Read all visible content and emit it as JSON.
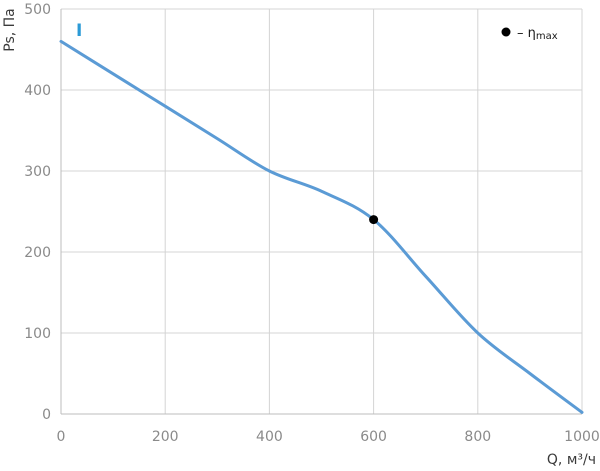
{
  "chart_data": {
    "type": "line",
    "xlabel": "Q, м³/ч",
    "ylabel": "Ps, Па",
    "xlim": [
      0,
      1000
    ],
    "ylim": [
      0,
      500
    ],
    "xticks": [
      0,
      200,
      400,
      600,
      800,
      1000
    ],
    "yticks": [
      0,
      100,
      200,
      300,
      400,
      500
    ],
    "grid": true,
    "series": [
      {
        "name": "I",
        "color": "#5b9bd5",
        "x": [
          0,
          100,
          200,
          300,
          400,
          500,
          600,
          700,
          800,
          900,
          1000
        ],
        "y": [
          460,
          420,
          380,
          340,
          300,
          275,
          240,
          170,
          100,
          50,
          2
        ]
      }
    ],
    "markers": [
      {
        "x": 600,
        "y": 240,
        "color": "#000000",
        "legend": "η"
      }
    ],
    "legend": {
      "position": "top-right",
      "prefix": "– ",
      "symbol": "η",
      "subscript": "max"
    },
    "series_label": {
      "text": "I",
      "color": "#2b9ad6"
    }
  }
}
